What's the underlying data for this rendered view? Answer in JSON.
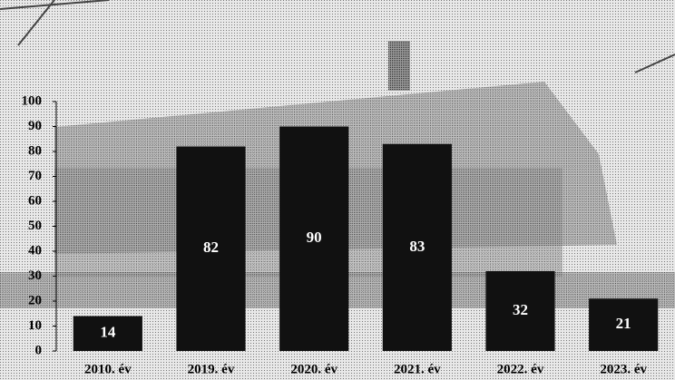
{
  "chart_data": {
    "type": "bar",
    "categories": [
      "2010. év",
      "2019. év",
      "2020. év",
      "2021. év",
      "2022. év",
      "2023. év"
    ],
    "values": [
      14,
      82,
      90,
      83,
      32,
      21
    ],
    "color": "#111111",
    "ylim": [
      0,
      100
    ],
    "yticks": [
      0,
      10,
      20,
      30,
      40,
      50,
      60,
      70,
      80,
      90,
      100
    ]
  }
}
